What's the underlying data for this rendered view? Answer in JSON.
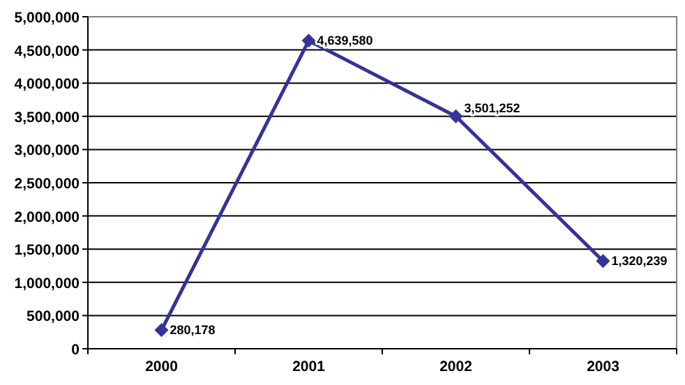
{
  "chart_data": {
    "type": "line",
    "categories": [
      "2000",
      "2001",
      "2002",
      "2003"
    ],
    "series": [
      {
        "color": "#333399",
        "values": [
          280178,
          4639580,
          3501252,
          1320239
        ]
      }
    ],
    "value_labels": [
      "280,178",
      "4,639,580",
      "3,501,252",
      "1,320,239"
    ],
    "ylim": [
      0,
      5000000
    ],
    "yticks": [
      {
        "value": 0,
        "label": "0"
      },
      {
        "value": 500000,
        "label": "500,000"
      },
      {
        "value": 1000000,
        "label": "1,000,000"
      },
      {
        "value": 1500000,
        "label": "1,500,000"
      },
      {
        "value": 2000000,
        "label": "2,000,000"
      },
      {
        "value": 2500000,
        "label": "2,500,000"
      },
      {
        "value": 3000000,
        "label": "3,000,000"
      },
      {
        "value": 3500000,
        "label": "3,500,000"
      },
      {
        "value": 4000000,
        "label": "4,000,000"
      },
      {
        "value": 4500000,
        "label": "4,500,000"
      },
      {
        "value": 5000000,
        "label": "5,000,000"
      }
    ],
    "grid": "y",
    "marker": "diamond",
    "line_style": "solid"
  }
}
